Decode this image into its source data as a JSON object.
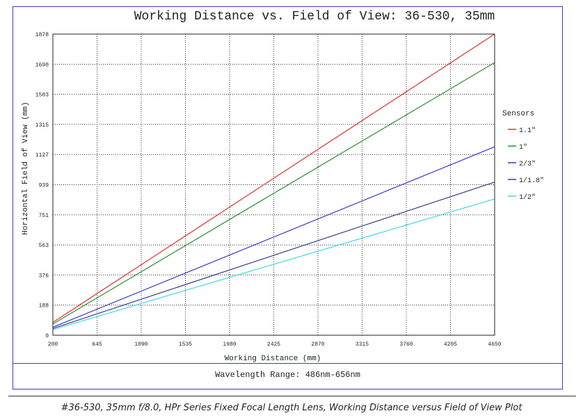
{
  "chart_data": {
    "type": "line",
    "title": "Working Distance vs. Field of View: 36-530, 35mm",
    "xlabel": "Working Distance (mm)",
    "ylabel": "Horizontal Field of View (mm)",
    "xlim": [
      200,
      4650
    ],
    "ylim": [
      0,
      1878
    ],
    "xticks": [
      200,
      645,
      1090,
      1535,
      1980,
      2425,
      2870,
      3315,
      3760,
      4205,
      4650
    ],
    "yticks": [
      0,
      188,
      376,
      563,
      751,
      939,
      1127,
      1315,
      1503,
      1690,
      1878
    ],
    "grid": true,
    "legend_title": "Sensors",
    "legend_position": "right",
    "series": [
      {
        "name": "1.1\"",
        "color": "#e03030",
        "x": [
          200,
          4650
        ],
        "y": [
          80,
          1878
        ]
      },
      {
        "name": "1\"",
        "color": "#2e8b2e",
        "x": [
          200,
          4650
        ],
        "y": [
          70,
          1700
        ]
      },
      {
        "name": "2/3\"",
        "color": "#3535c8",
        "x": [
          200,
          4650
        ],
        "y": [
          50,
          1175
        ]
      },
      {
        "name": "1/1.8\"",
        "color": "#3a3a8a",
        "x": [
          200,
          4650
        ],
        "y": [
          42,
          955
        ]
      },
      {
        "name": "1/2\"",
        "color": "#3fd8e8",
        "x": [
          200,
          4650
        ],
        "y": [
          35,
          850
        ]
      }
    ]
  },
  "footer": {
    "wavelength": "Wavelength Range: 486nm-656nm"
  },
  "caption": "#36-530, 35mm f/8.0, HPr Series Fixed Focal Length Lens, Working Distance versus Field of View Plot"
}
